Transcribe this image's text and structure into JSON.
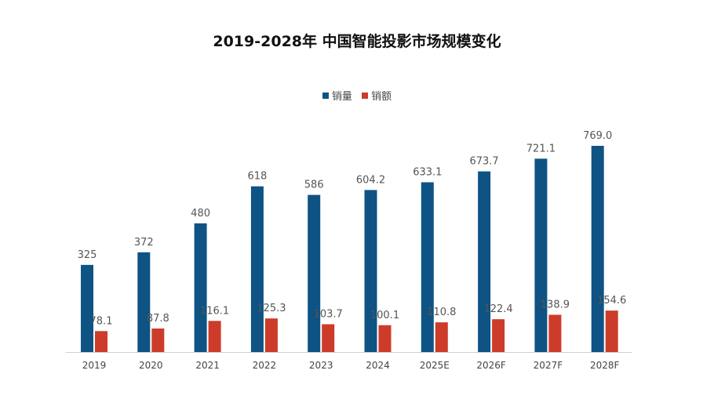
{
  "chart_data": {
    "type": "bar",
    "title": "2019-2028年 中国智能投影市场规模变化",
    "categories": [
      "2019",
      "2020",
      "2021",
      "2022",
      "2023",
      "2024",
      "2025E",
      "2026F",
      "2027F",
      "2028F"
    ],
    "series": [
      {
        "name": "销量",
        "color": "#0e5384",
        "values": [
          325,
          372,
          480,
          618,
          586,
          604.2,
          633.1,
          673.7,
          721.1,
          769.0
        ],
        "labels": [
          "325",
          "372",
          "480",
          "618",
          "586",
          "604.2",
          "633.1",
          "673.7",
          "721.1",
          "769.0"
        ]
      },
      {
        "name": "销额",
        "color": "#cd3b2a",
        "values": [
          78.1,
          87.8,
          116.1,
          125.3,
          103.7,
          100.1,
          110.8,
          122.4,
          138.9,
          154.6
        ],
        "labels": [
          "78.1",
          "87.8",
          "116.1",
          "125.3",
          "103.7",
          "100.1",
          "110.8",
          "122.4",
          "138.9",
          "154.6"
        ]
      }
    ],
    "ylim": [
      0,
      800
    ],
    "grid": false,
    "legend_position": "top"
  }
}
